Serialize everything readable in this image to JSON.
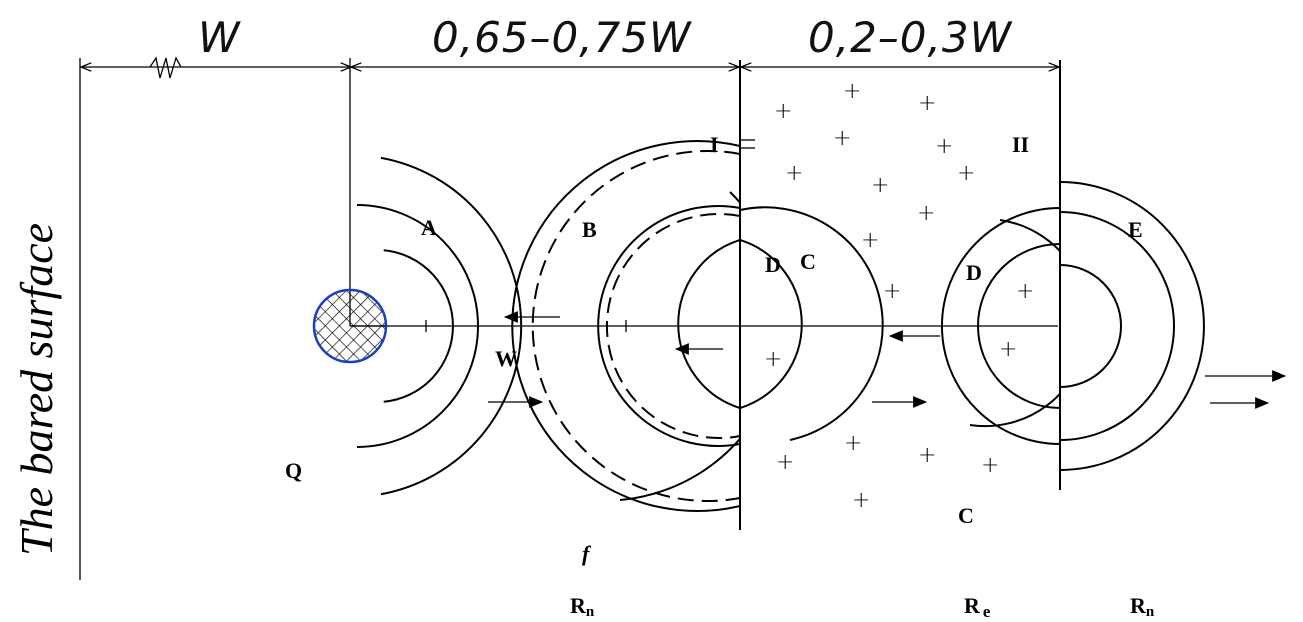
{
  "diagram": {
    "side_label": "The bared surface",
    "dimensions": {
      "d1": "W",
      "d2": "0,65–0,75W",
      "d3": "0,2–0,3W"
    },
    "region_labels": {
      "A": "A",
      "B": "B",
      "C_inner": "C",
      "C_lower": "C",
      "D_left": "D",
      "D_right": "D",
      "E": "E",
      "I": "I",
      "II": "II",
      "W": "W",
      "Q": "Q",
      "f": "f"
    },
    "bottom_labels": {
      "rn_left": "R",
      "rn_left_sub": "n",
      "re": "R",
      "re_sub": "e",
      "rn_right": "R",
      "rn_right_sub": "n"
    },
    "plus_symbol": "+",
    "charge_color": "#1a3fbf"
  }
}
